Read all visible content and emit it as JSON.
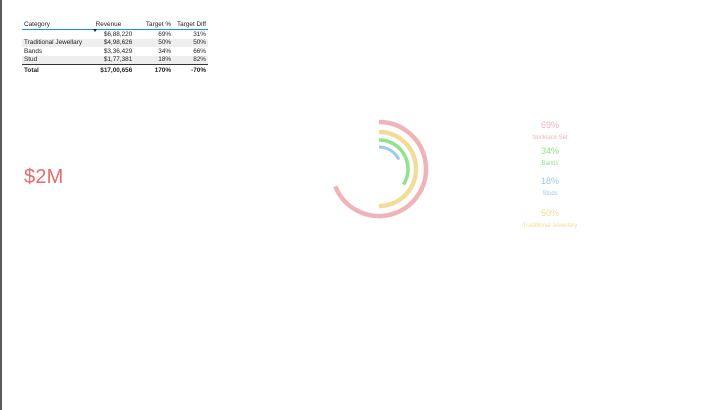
{
  "table": {
    "headers": {
      "category": "Category",
      "revenue": "Revenue",
      "target_pct": "Target %",
      "target_diff": "Target Diff"
    },
    "rows": [
      {
        "category": "",
        "revenue": "$6,88,220",
        "target_pct": "69%",
        "target_diff": "31%"
      },
      {
        "category": "Traditional Jewellary",
        "revenue": "$4,98,626",
        "target_pct": "50%",
        "target_diff": "50%"
      },
      {
        "category": "Bands",
        "revenue": "$3,36,429",
        "target_pct": "34%",
        "target_diff": "66%"
      },
      {
        "category": "Stud",
        "revenue": "$1,77,381",
        "target_pct": "18%",
        "target_diff": "82%"
      }
    ],
    "total": {
      "category": "Total",
      "revenue": "$17,00,656",
      "target_pct": "170%",
      "target_diff": "-70%"
    }
  },
  "kpi": {
    "value": "$2M"
  },
  "chart_data": {
    "type": "radial-bar",
    "series": [
      {
        "name": "Necklace Set",
        "value": 69,
        "label": "69%",
        "color": "#f0b4b8"
      },
      {
        "name": "Traditional Jewellary",
        "value": 50,
        "label": "50%",
        "color": "#f2dc98"
      },
      {
        "name": "Bands",
        "value": 34,
        "label": "34%",
        "color": "#8fe38d"
      },
      {
        "name": "Studs",
        "value": 18,
        "label": "18%",
        "color": "#9ccaf2"
      }
    ]
  },
  "legend": [
    {
      "value": "69%",
      "label": "Necklace Set",
      "color": "#f0b4b8"
    },
    {
      "value": "34%",
      "label": "Bands",
      "color": "#8fe38d"
    },
    {
      "value": "18%",
      "label": "Studs",
      "color": "#9ccaf2"
    },
    {
      "value": "50%",
      "label": "Traditional Jewellary",
      "color": "#f2dc98"
    }
  ]
}
